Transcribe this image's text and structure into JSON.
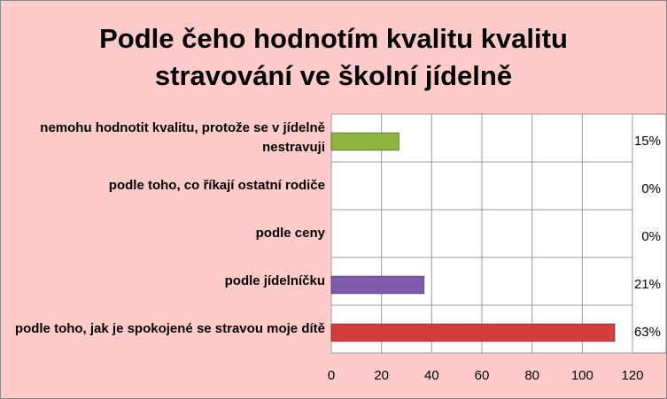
{
  "chart_data": {
    "type": "hbar",
    "title": "Podle čeho hodnotím kvalitu kvalitu stravování ve školní jídelně",
    "categories": [
      "nemohu hodnotit kvalitu, protože se v jídelně nestravuji",
      "podle toho, co říkají ostatní rodiče",
      "podle ceny",
      "podle jídelníčku",
      "podle toho, jak je spokojené se stravou moje dítě"
    ],
    "values": [
      27,
      0,
      0,
      37,
      113
    ],
    "percent_labels": [
      "15%",
      "0%",
      "0%",
      "21%",
      "63%"
    ],
    "colors": [
      "#8db33e",
      "#7b5ca8",
      "#7b5ca8",
      "#7b5ca8",
      "#d23c3c"
    ],
    "xlim": [
      0,
      120
    ],
    "xticks": [
      0,
      20,
      40,
      60,
      80,
      100,
      120
    ],
    "grid": true
  }
}
